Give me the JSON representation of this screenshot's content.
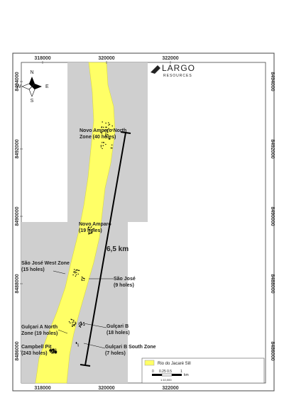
{
  "map": {
    "logo": {
      "name": "LARGO",
      "sub": "RESOURCES"
    },
    "compass": {
      "n": "N",
      "s": "S",
      "e": "E",
      "w": "W"
    },
    "eastings": [
      318000,
      320000,
      322000
    ],
    "northings": [
      8494000,
      8492000,
      8490000,
      8488000,
      8486000
    ],
    "annotations": [
      {
        "lines": [
          "Novo Amparo North",
          "Zone (40 holes)"
        ]
      },
      {
        "lines": [
          "Novo Amparo",
          "(19 holes)"
        ]
      },
      {
        "lines": [
          "São José West Zone",
          "(15 holes)"
        ]
      },
      {
        "lines": [
          "São José",
          "(9 holes)"
        ]
      },
      {
        "lines": [
          "Gulçari B",
          "(18 holes)"
        ]
      },
      {
        "lines": [
          "Gulçari A North",
          "Zone (19 holes)"
        ]
      },
      {
        "lines": [
          "Gulçari B South Zone",
          "(7 holes)"
        ]
      },
      {
        "lines": [
          "Campbell Pit",
          "(243 holes)"
        ]
      }
    ],
    "distance": "6,5 km",
    "legend": {
      "label": "Rio do Jacaré Sill",
      "scale_ticks": [
        "0",
        "0.25 0.5",
        "1"
      ],
      "scale_unit": "km",
      "ratio": "1:10,000"
    }
  }
}
